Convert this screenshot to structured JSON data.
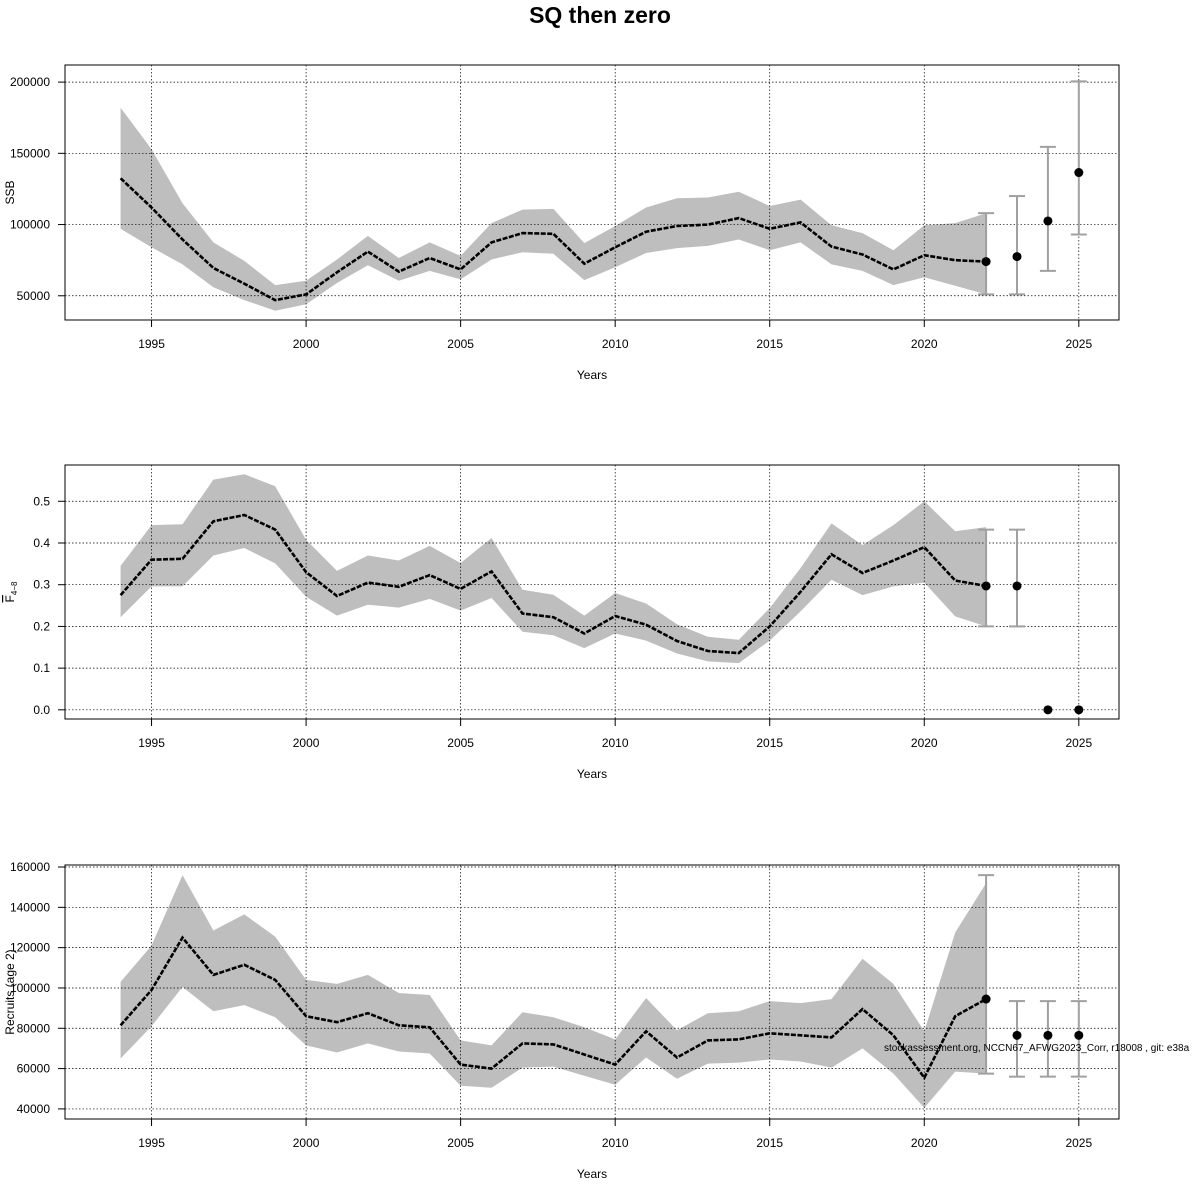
{
  "title": "SQ then zero",
  "footer_text": "stockassessment.org, NCCN67_AFWG2023_Corr, r18008 , git: e38a",
  "colors": {
    "band": "#bebebe",
    "line": "#000000",
    "grid": "#000000",
    "errorbar": "#a0a0a0"
  },
  "chart_data": [
    {
      "type": "line",
      "ylabel": "SSB",
      "xlabel": "Years",
      "xlim": [
        1992.2,
        2026.3
      ],
      "ylim": [
        33000,
        212000
      ],
      "xticks": [
        1995,
        2000,
        2005,
        2010,
        2015,
        2020,
        2025
      ],
      "xtick_labels": [
        "1995",
        "2000",
        "2005",
        "2010",
        "2015",
        "2020",
        "2025"
      ],
      "yticks": [
        50000,
        100000,
        150000,
        200000
      ],
      "ytick_labels": [
        "50000",
        "100000",
        "150000",
        "200000"
      ],
      "x": [
        1994,
        1995,
        1996,
        1997,
        1998,
        1999,
        2000,
        2001,
        2002,
        2003,
        2004,
        2005,
        2006,
        2007,
        2008,
        2009,
        2010,
        2011,
        2012,
        2013,
        2014,
        2015,
        2016,
        2017,
        2018,
        2019,
        2020,
        2021,
        2022
      ],
      "estimate": [
        132500,
        112000,
        89500,
        69500,
        58500,
        47000,
        51000,
        66500,
        81000,
        67000,
        76500,
        68500,
        87500,
        94000,
        93500,
        72500,
        84000,
        95000,
        99000,
        100000,
        104500,
        97000,
        101500,
        84500,
        79000,
        68500,
        78500,
        75000,
        74000
      ],
      "lower": [
        97000,
        84000,
        72000,
        56000,
        47000,
        39500,
        44000,
        59000,
        71500,
        60500,
        67500,
        61500,
        75500,
        80500,
        79500,
        61000,
        70000,
        80000,
        83500,
        85000,
        89500,
        82000,
        87500,
        72000,
        67500,
        57500,
        63000,
        57000,
        51000
      ],
      "upper": [
        182000,
        153000,
        115000,
        87500,
        74500,
        57500,
        60500,
        75500,
        92000,
        76500,
        87500,
        78000,
        101000,
        110500,
        111000,
        87000,
        99000,
        112000,
        118500,
        119000,
        123000,
        113000,
        117500,
        99500,
        94000,
        82000,
        99500,
        101000,
        108000
      ],
      "forecast_x": [
        2022,
        2023,
        2024,
        2025
      ],
      "forecast_median": [
        74000,
        77500,
        102500,
        136500
      ],
      "forecast_lower": [
        51000,
        51000,
        67500,
        93000
      ],
      "forecast_upper": [
        108000,
        120000,
        154500,
        200500
      ]
    },
    {
      "type": "line",
      "ylabel": "F4-8",
      "ylabel_main": "F",
      "ylabel_sub": "4−8",
      "xlabel": "Years",
      "xlim": [
        1992.2,
        2026.3
      ],
      "ylim": [
        -0.022,
        0.587
      ],
      "xticks": [
        1995,
        2000,
        2005,
        2010,
        2015,
        2020,
        2025
      ],
      "xtick_labels": [
        "1995",
        "2000",
        "2005",
        "2010",
        "2015",
        "2020",
        "2025"
      ],
      "yticks": [
        0.0,
        0.1,
        0.2,
        0.3,
        0.4,
        0.5
      ],
      "ytick_labels": [
        "0.0",
        "0.1",
        "0.2",
        "0.3",
        "0.4",
        "0.5"
      ],
      "x": [
        1994,
        1995,
        1996,
        1997,
        1998,
        1999,
        2000,
        2001,
        2002,
        2003,
        2004,
        2005,
        2006,
        2007,
        2008,
        2009,
        2010,
        2011,
        2012,
        2013,
        2014,
        2015,
        2016,
        2017,
        2018,
        2019,
        2020,
        2021,
        2022
      ],
      "estimate": [
        0.275,
        0.36,
        0.362,
        0.452,
        0.467,
        0.432,
        0.33,
        0.273,
        0.305,
        0.295,
        0.323,
        0.29,
        0.332,
        0.231,
        0.222,
        0.183,
        0.225,
        0.204,
        0.165,
        0.141,
        0.136,
        0.2,
        0.283,
        0.373,
        0.328,
        0.358,
        0.39,
        0.31,
        0.297
      ],
      "lower": [
        0.222,
        0.296,
        0.296,
        0.37,
        0.388,
        0.351,
        0.271,
        0.226,
        0.252,
        0.245,
        0.266,
        0.238,
        0.268,
        0.187,
        0.179,
        0.148,
        0.183,
        0.166,
        0.135,
        0.116,
        0.112,
        0.166,
        0.236,
        0.312,
        0.275,
        0.296,
        0.305,
        0.224,
        0.2
      ],
      "upper": [
        0.345,
        0.443,
        0.445,
        0.552,
        0.565,
        0.536,
        0.408,
        0.333,
        0.37,
        0.358,
        0.393,
        0.352,
        0.412,
        0.288,
        0.276,
        0.226,
        0.28,
        0.255,
        0.205,
        0.175,
        0.168,
        0.244,
        0.34,
        0.447,
        0.395,
        0.443,
        0.5,
        0.428,
        0.438
      ],
      "forecast_x": [
        2022,
        2023,
        2024,
        2025
      ],
      "forecast_median": [
        0.297,
        0.297,
        0.0,
        0.0
      ],
      "forecast_lower": [
        0.2,
        0.2,
        0.0,
        0.0
      ],
      "forecast_upper": [
        0.432,
        0.432,
        0.0,
        0.0
      ]
    },
    {
      "type": "line",
      "ylabel": "Recruits (age 2)",
      "xlabel": "Years",
      "xlim": [
        1992.2,
        2026.3
      ],
      "ylim": [
        35000,
        161000
      ],
      "xticks": [
        1995,
        2000,
        2005,
        2010,
        2015,
        2020,
        2025
      ],
      "xtick_labels": [
        "1995",
        "2000",
        "2005",
        "2010",
        "2015",
        "2020",
        "2025"
      ],
      "yticks": [
        40000,
        60000,
        80000,
        100000,
        120000,
        140000,
        160000
      ],
      "ytick_labels": [
        "40000",
        "60000",
        "80000",
        "100000",
        "120000",
        "140000",
        "160000"
      ],
      "x": [
        1994,
        1995,
        1996,
        1997,
        1998,
        1999,
        2000,
        2001,
        2002,
        2003,
        2004,
        2005,
        2006,
        2007,
        2008,
        2009,
        2010,
        2011,
        2012,
        2013,
        2014,
        2015,
        2016,
        2017,
        2018,
        2019,
        2020,
        2021,
        2022
      ],
      "estimate": [
        81500,
        99000,
        125000,
        106500,
        111500,
        104000,
        86000,
        83000,
        87500,
        81500,
        80500,
        62000,
        60000,
        72500,
        72000,
        67000,
        62000,
        78500,
        65500,
        74000,
        74500,
        77500,
        76500,
        75500,
        89500,
        76500,
        55500,
        86000,
        94500
      ],
      "lower": [
        65000,
        81000,
        100500,
        88500,
        91500,
        85500,
        71500,
        68000,
        72500,
        68500,
        67500,
        51500,
        50500,
        60500,
        61000,
        56500,
        52000,
        65500,
        55000,
        62500,
        63000,
        64500,
        63500,
        60500,
        70000,
        57500,
        40500,
        58500,
        57500
      ],
      "upper": [
        103000,
        121000,
        156000,
        128500,
        136500,
        125500,
        104000,
        102000,
        106500,
        97500,
        96500,
        74000,
        71500,
        88000,
        85500,
        80500,
        74500,
        95000,
        79000,
        87500,
        88500,
        93500,
        92500,
        94500,
        114500,
        102000,
        78500,
        127500,
        152000
      ],
      "forecast_x": [
        2022,
        2023,
        2024,
        2025
      ],
      "forecast_median": [
        94500,
        76500,
        76500,
        76500
      ],
      "forecast_lower": [
        57500,
        56000,
        56000,
        56000
      ],
      "forecast_upper": [
        156000,
        93500,
        93500,
        93500
      ]
    }
  ]
}
